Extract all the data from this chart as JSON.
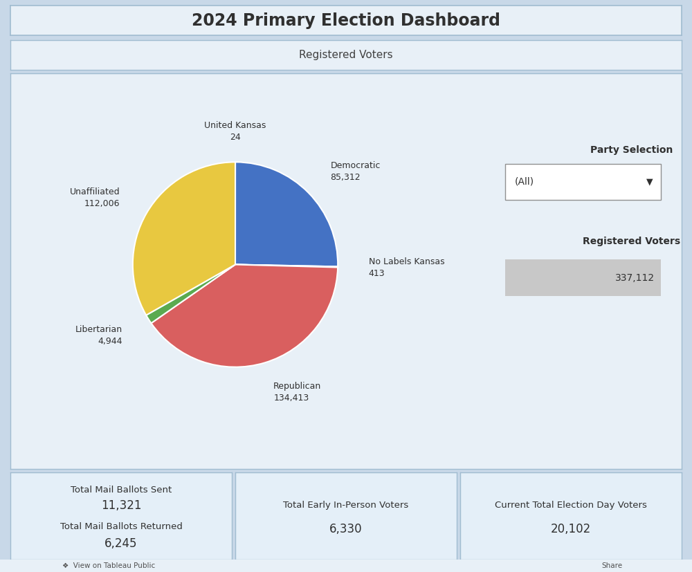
{
  "title": "2024 Primary Election Dashboard",
  "subtitle": "Registered Voters",
  "bg_outer": "#c8d8e8",
  "bg_panel": "#e8f0f7",
  "bg_card": "#e4eff8",
  "border_color": "#a0bcd0",
  "pie_labels": [
    "United Kansas",
    "Democratic",
    "No Labels Kansas",
    "Republican",
    "Libertarian",
    "Unaffiliated"
  ],
  "pie_values": [
    24,
    85312,
    413,
    134413,
    4944,
    112006
  ],
  "pie_label_values": [
    "24",
    "85,312",
    "413",
    "134,413",
    "4,944",
    "112,006"
  ],
  "pie_colors": [
    "#e8c840",
    "#4472c4",
    "#b0b0b0",
    "#d95f5f",
    "#5aaa50",
    "#e8c840"
  ],
  "party_selection_label": "Party Selection",
  "party_selection_value": "(All)",
  "registered_voters_label": "Registered Voters",
  "registered_voters_value": "337,112",
  "bottom_cards": [
    {
      "line1": "Total Mail Ballots Sent",
      "val1": "11,321",
      "line2": "Total Mail Ballots Returned",
      "val2": "6,245"
    },
    {
      "line1": "Total Early In-Person Voters",
      "val1": "6,330",
      "line2": "",
      "val2": ""
    },
    {
      "line1": "Current Total Election Day Voters",
      "val1": "20,102",
      "line2": "",
      "val2": ""
    }
  ],
  "footer_label": "View on Tableau Public"
}
